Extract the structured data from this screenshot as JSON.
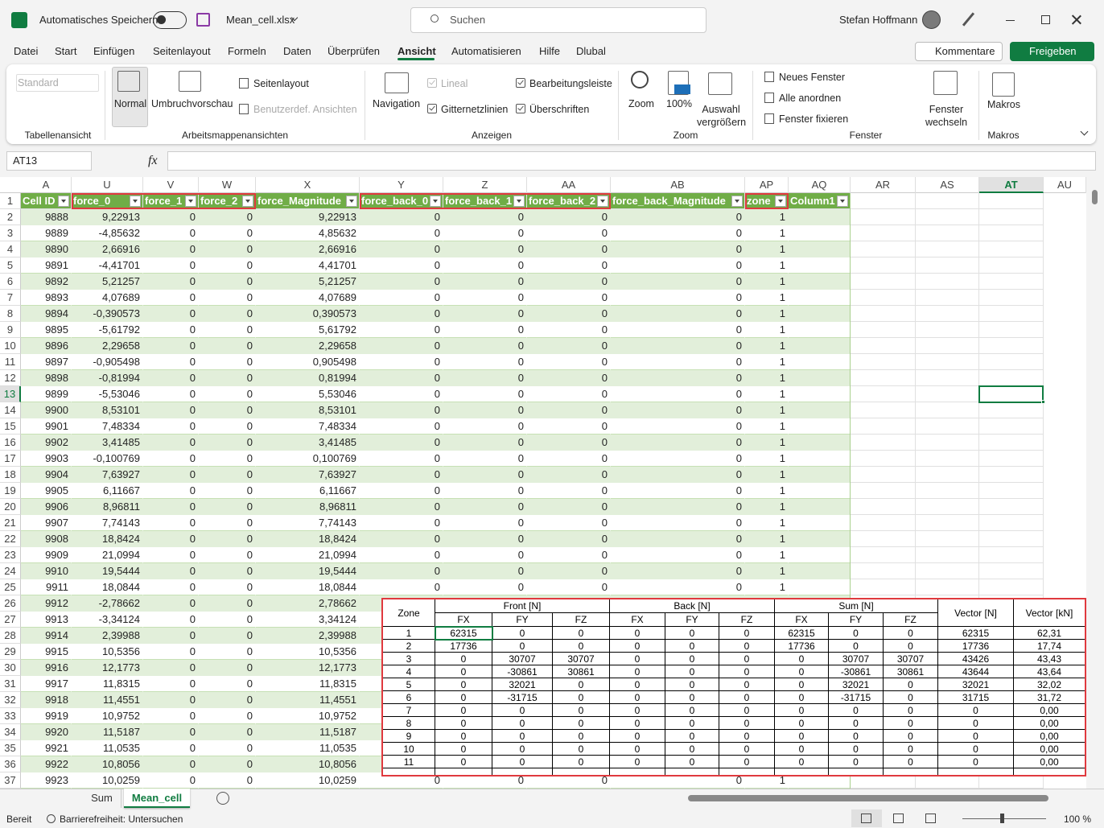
{
  "titlebar": {
    "autosave": "Automatisches Speichern",
    "filename": "Mean_cell.xlsx",
    "search": "Suchen",
    "user": "Stefan Hoffmann"
  },
  "menu": {
    "tabs": [
      "Datei",
      "Start",
      "Einfügen",
      "Seitenlayout",
      "Formeln",
      "Daten",
      "Überprüfen",
      "Ansicht",
      "Automatisieren",
      "Hilfe",
      "Dlubal"
    ],
    "comments": "Kommentare",
    "share": "Freigeben"
  },
  "ribbon": {
    "groups": [
      {
        "label": "Tabellenansicht",
        "items": [
          "Standard"
        ]
      },
      {
        "label": "Arbeitsmappenansichten",
        "items": [
          "Normal",
          "Umbruchvorschau",
          "Seitenlayout",
          "Benutzerdef. Ansichten"
        ]
      },
      {
        "label": "Anzeigen",
        "items": [
          "Navigation",
          "Lineal",
          "Gitternetzlinien",
          "Bearbeitungsleiste",
          "Überschriften"
        ]
      },
      {
        "label": "Zoom",
        "items": [
          "Zoom",
          "100%",
          "Auswahl vergrößern"
        ]
      },
      {
        "label": "Fenster",
        "items": [
          "Neues Fenster",
          "Alle anordnen",
          "Fenster fixieren",
          "Fenster wechseln"
        ]
      },
      {
        "label": "Makros",
        "items": [
          "Makros"
        ]
      }
    ]
  },
  "formula_bar": {
    "name_box": "AT13",
    "fx": "fx"
  },
  "sheet": {
    "columns": [
      "A",
      "U",
      "V",
      "W",
      "X",
      "Y",
      "Z",
      "AA",
      "AB",
      "AP",
      "AQ",
      "AR",
      "AS",
      "AT",
      "AU"
    ],
    "row_numbers": [
      1,
      2,
      3,
      4,
      5,
      6,
      7,
      8,
      9,
      10,
      11,
      12,
      13,
      14,
      15,
      16,
      17,
      18,
      19,
      20,
      21,
      22,
      23,
      24,
      25,
      26,
      27,
      28,
      29,
      30,
      31,
      32,
      33,
      34,
      35,
      36,
      37
    ],
    "headers": [
      "Cell ID",
      "force_0",
      "force_1",
      "force_2",
      "force_Magnitude",
      "force_back_0",
      "force_back_1",
      "force_back_2",
      "force_back_Magnitude",
      "zone",
      "Column1"
    ],
    "rows": [
      [
        "9888",
        "9,22913",
        "0",
        "0",
        "9,22913",
        "0",
        "0",
        "0",
        "0",
        "1"
      ],
      [
        "9889",
        "-4,85632",
        "0",
        "0",
        "4,85632",
        "0",
        "0",
        "0",
        "0",
        "1"
      ],
      [
        "9890",
        "2,66916",
        "0",
        "0",
        "2,66916",
        "0",
        "0",
        "0",
        "0",
        "1"
      ],
      [
        "9891",
        "-4,41701",
        "0",
        "0",
        "4,41701",
        "0",
        "0",
        "0",
        "0",
        "1"
      ],
      [
        "9892",
        "5,21257",
        "0",
        "0",
        "5,21257",
        "0",
        "0",
        "0",
        "0",
        "1"
      ],
      [
        "9893",
        "4,07689",
        "0",
        "0",
        "4,07689",
        "0",
        "0",
        "0",
        "0",
        "1"
      ],
      [
        "9894",
        "-0,390573",
        "0",
        "0",
        "0,390573",
        "0",
        "0",
        "0",
        "0",
        "1"
      ],
      [
        "9895",
        "-5,61792",
        "0",
        "0",
        "5,61792",
        "0",
        "0",
        "0",
        "0",
        "1"
      ],
      [
        "9896",
        "2,29658",
        "0",
        "0",
        "2,29658",
        "0",
        "0",
        "0",
        "0",
        "1"
      ],
      [
        "9897",
        "-0,905498",
        "0",
        "0",
        "0,905498",
        "0",
        "0",
        "0",
        "0",
        "1"
      ],
      [
        "9898",
        "-0,81994",
        "0",
        "0",
        "0,81994",
        "0",
        "0",
        "0",
        "0",
        "1"
      ],
      [
        "9899",
        "-5,53046",
        "0",
        "0",
        "5,53046",
        "0",
        "0",
        "0",
        "0",
        "1"
      ],
      [
        "9900",
        "8,53101",
        "0",
        "0",
        "8,53101",
        "0",
        "0",
        "0",
        "0",
        "1"
      ],
      [
        "9901",
        "7,48334",
        "0",
        "0",
        "7,48334",
        "0",
        "0",
        "0",
        "0",
        "1"
      ],
      [
        "9902",
        "3,41485",
        "0",
        "0",
        "3,41485",
        "0",
        "0",
        "0",
        "0",
        "1"
      ],
      [
        "9903",
        "-0,100769",
        "0",
        "0",
        "0,100769",
        "0",
        "0",
        "0",
        "0",
        "1"
      ],
      [
        "9904",
        "7,63927",
        "0",
        "0",
        "7,63927",
        "0",
        "0",
        "0",
        "0",
        "1"
      ],
      [
        "9905",
        "6,11667",
        "0",
        "0",
        "6,11667",
        "0",
        "0",
        "0",
        "0",
        "1"
      ],
      [
        "9906",
        "8,96811",
        "0",
        "0",
        "8,96811",
        "0",
        "0",
        "0",
        "0",
        "1"
      ],
      [
        "9907",
        "7,74143",
        "0",
        "0",
        "7,74143",
        "0",
        "0",
        "0",
        "0",
        "1"
      ],
      [
        "9908",
        "18,8424",
        "0",
        "0",
        "18,8424",
        "0",
        "0",
        "0",
        "0",
        "1"
      ],
      [
        "9909",
        "21,0994",
        "0",
        "0",
        "21,0994",
        "0",
        "0",
        "0",
        "0",
        "1"
      ],
      [
        "9910",
        "19,5444",
        "0",
        "0",
        "19,5444",
        "0",
        "0",
        "0",
        "0",
        "1"
      ],
      [
        "9911",
        "18,0844",
        "0",
        "0",
        "18,0844",
        "0",
        "0",
        "0",
        "0",
        "1"
      ],
      [
        "9912",
        "-2,78662",
        "0",
        "0",
        "2,78662"
      ],
      [
        "9913",
        "-3,34124",
        "0",
        "0",
        "3,34124"
      ],
      [
        "9914",
        "2,39988",
        "0",
        "0",
        "2,39988"
      ],
      [
        "9915",
        "10,5356",
        "0",
        "0",
        "10,5356"
      ],
      [
        "9916",
        "12,1773",
        "0",
        "0",
        "12,1773"
      ],
      [
        "9917",
        "11,8315",
        "0",
        "0",
        "11,8315"
      ],
      [
        "9918",
        "11,4551",
        "0",
        "0",
        "11,4551"
      ],
      [
        "9919",
        "10,9752",
        "0",
        "0",
        "10,9752"
      ],
      [
        "9920",
        "11,5187",
        "0",
        "0",
        "11,5187"
      ],
      [
        "9921",
        "11,0535",
        "0",
        "0",
        "11,0535"
      ],
      [
        "9922",
        "10,8056",
        "0",
        "0",
        "10,8056"
      ],
      [
        "9923",
        "10,0259",
        "0",
        "0",
        "10,0259",
        "0",
        "0",
        "0",
        "0",
        "1"
      ]
    ]
  },
  "summary_table": {
    "corner": "Zone",
    "groups": [
      "Front [N]",
      "Back [N]",
      "Sum [N]"
    ],
    "vector_n": "Vector [N]",
    "vector_kn": "Vector [kN]",
    "sub": [
      "FX",
      "FY",
      "FZ",
      "FX",
      "FY",
      "FZ",
      "FX",
      "FY",
      "FZ"
    ],
    "rows": [
      [
        "1",
        "62315",
        "0",
        "0",
        "0",
        "0",
        "0",
        "62315",
        "0",
        "0",
        "62315",
        "62,31"
      ],
      [
        "2",
        "17736",
        "0",
        "0",
        "0",
        "0",
        "0",
        "17736",
        "0",
        "0",
        "17736",
        "17,74"
      ],
      [
        "3",
        "0",
        "30707",
        "30707",
        "0",
        "0",
        "0",
        "0",
        "30707",
        "30707",
        "43426",
        "43,43"
      ],
      [
        "4",
        "0",
        "-30861",
        "30861",
        "0",
        "0",
        "0",
        "0",
        "-30861",
        "30861",
        "43644",
        "43,64"
      ],
      [
        "5",
        "0",
        "32021",
        "0",
        "0",
        "0",
        "0",
        "0",
        "32021",
        "0",
        "32021",
        "32,02"
      ],
      [
        "6",
        "0",
        "-31715",
        "0",
        "0",
        "0",
        "0",
        "0",
        "-31715",
        "0",
        "31715",
        "31,72"
      ],
      [
        "7",
        "0",
        "0",
        "0",
        "0",
        "0",
        "0",
        "0",
        "0",
        "0",
        "0",
        "0,00"
      ],
      [
        "8",
        "0",
        "0",
        "0",
        "0",
        "0",
        "0",
        "0",
        "0",
        "0",
        "0",
        "0,00"
      ],
      [
        "9",
        "0",
        "0",
        "0",
        "0",
        "0",
        "0",
        "0",
        "0",
        "0",
        "0",
        "0,00"
      ],
      [
        "10",
        "0",
        "0",
        "0",
        "0",
        "0",
        "0",
        "0",
        "0",
        "0",
        "0",
        "0,00"
      ],
      [
        "11",
        "0",
        "0",
        "0",
        "0",
        "0",
        "0",
        "0",
        "0",
        "0",
        "0",
        "0,00"
      ]
    ]
  },
  "tabs": {
    "sheets": [
      "Sum",
      "Mean_cell"
    ]
  },
  "status": {
    "ready": "Bereit",
    "accessibility": "Barrierefreiheit: Untersuchen",
    "zoom": "100 %"
  }
}
